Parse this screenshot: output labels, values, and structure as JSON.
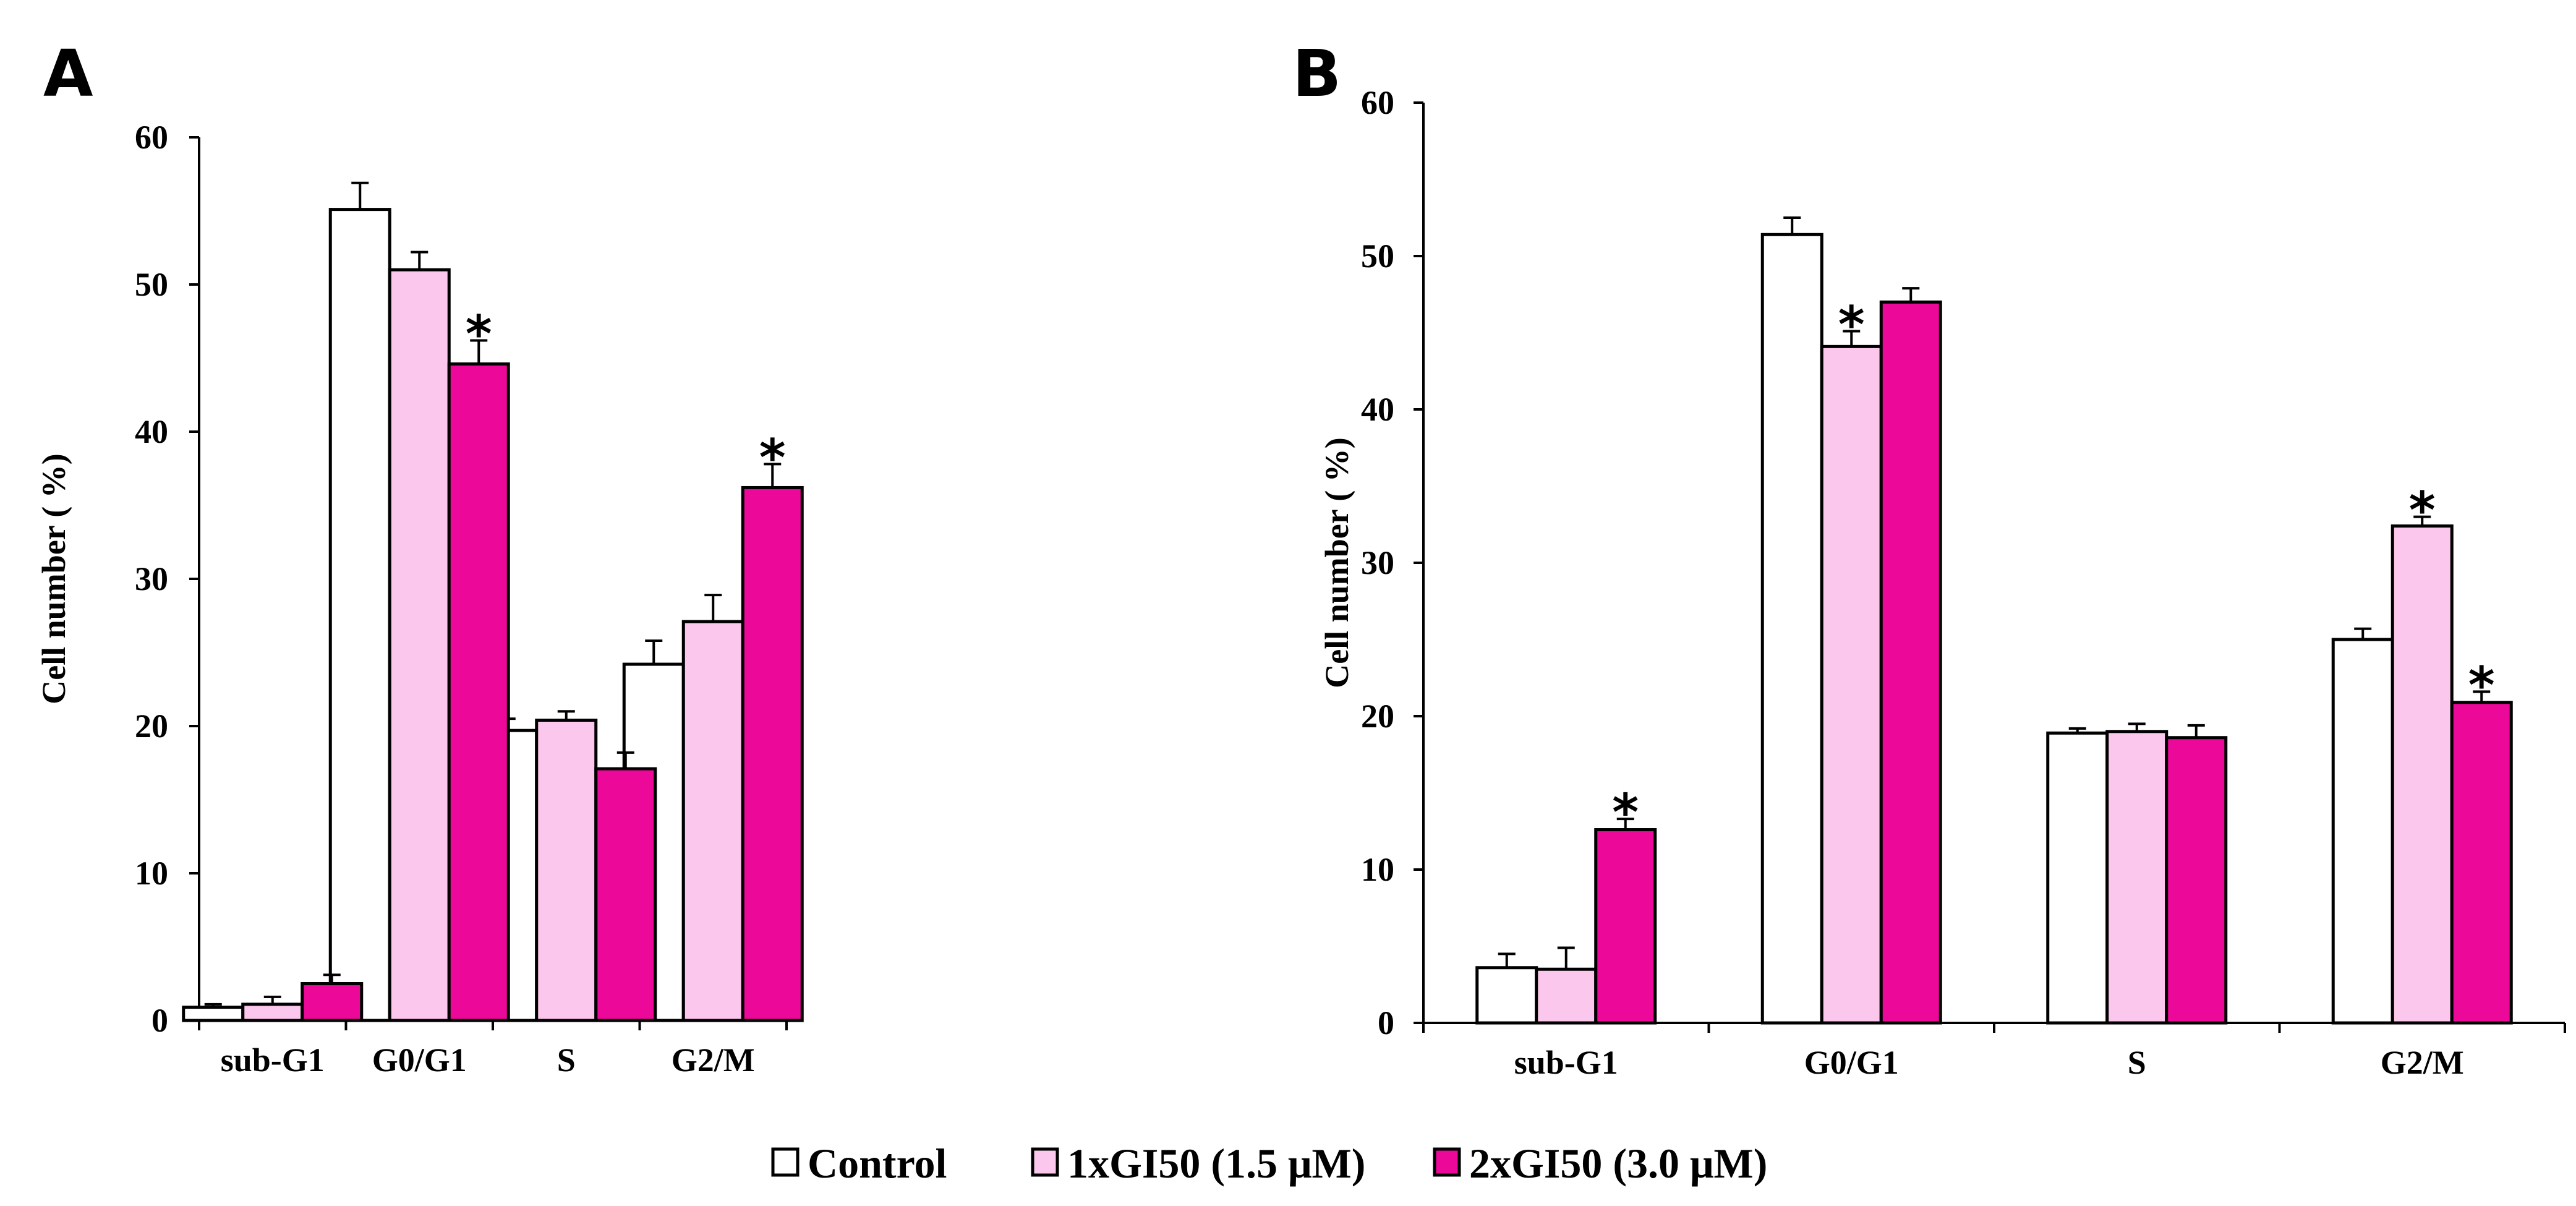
{
  "legend": [
    {
      "label": "Control",
      "color": "#ffffff"
    },
    {
      "label": "1xGI50 (1.5 μM)",
      "color": "#fcc7ec"
    },
    {
      "label": "2xGI50 (3.0 μM)",
      "color": "#ec0898"
    }
  ],
  "chart_data": [
    {
      "panel": "A",
      "type": "bar",
      "categories": [
        "sub-G1",
        "G0/G1",
        "S",
        "G2/M"
      ],
      "ylabel": "Cell number ( %)",
      "ylim": [
        0,
        60
      ],
      "yticks": [
        0,
        10,
        20,
        30,
        40,
        50,
        60
      ],
      "series": [
        {
          "name": "Control",
          "values": [
            0.9,
            55.1,
            19.7,
            24.2
          ],
          "errors": [
            0.2,
            1.8,
            0.8,
            1.6
          ],
          "significant": [
            false,
            false,
            false,
            false
          ]
        },
        {
          "name": "1xGI50 (1.5 μM)",
          "values": [
            1.1,
            51.0,
            20.4,
            27.1
          ],
          "errors": [
            0.5,
            1.2,
            0.6,
            1.8
          ],
          "significant": [
            false,
            false,
            false,
            false
          ]
        },
        {
          "name": "2xGI50 (3.0 μM)",
          "values": [
            2.5,
            44.6,
            17.1,
            36.2
          ],
          "errors": [
            0.6,
            1.6,
            1.1,
            1.6
          ],
          "significant": [
            false,
            true,
            false,
            true
          ]
        }
      ]
    },
    {
      "panel": "B",
      "type": "bar",
      "categories": [
        "sub-G1",
        "G0/G1",
        "S",
        "G2/M"
      ],
      "ylabel": "Cell number ( %)",
      "ylim": [
        0,
        60
      ],
      "yticks": [
        0,
        10,
        20,
        30,
        40,
        50,
        60
      ],
      "series": [
        {
          "name": "Control",
          "values": [
            3.6,
            51.4,
            18.9,
            25.0
          ],
          "errors": [
            0.9,
            1.1,
            0.3,
            0.7
          ],
          "significant": [
            false,
            false,
            false,
            false
          ]
        },
        {
          "name": "1xGI50 (1.5 μM)",
          "values": [
            3.5,
            44.1,
            19.0,
            32.4
          ],
          "errors": [
            1.4,
            1.0,
            0.5,
            0.6
          ],
          "significant": [
            false,
            true,
            false,
            true
          ]
        },
        {
          "name": "2xGI50 (3.0 μM)",
          "values": [
            12.6,
            47.0,
            18.6,
            20.9
          ],
          "errors": [
            0.7,
            0.9,
            0.8,
            0.7
          ],
          "significant": [
            true,
            false,
            false,
            true
          ]
        }
      ]
    }
  ]
}
